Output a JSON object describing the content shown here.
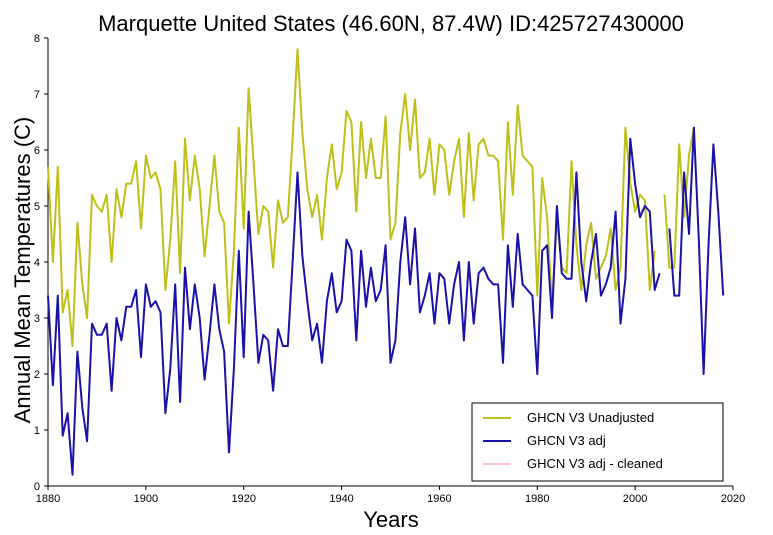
{
  "chart_data": {
    "type": "line",
    "title": "Marquette United States (46.60N, 87.4W) ID:425727430000",
    "xlabel": "Years",
    "ylabel": "Annual Mean Temperatures (C)",
    "xlim": [
      1880,
      2020
    ],
    "ylim": [
      0,
      8
    ],
    "xticks": [
      1880,
      1900,
      1920,
      1940,
      1960,
      1980,
      2000,
      2020
    ],
    "yticks": [
      0,
      1,
      2,
      3,
      4,
      5,
      6,
      7,
      8
    ],
    "grid": false,
    "legend_position": "bottom-right",
    "series": [
      {
        "name": "GHCN V3 Unadjusted",
        "color": "#bfbf1a",
        "x": [
          1880,
          1881,
          1882,
          1883,
          1884,
          1885,
          1886,
          1887,
          1888,
          1889,
          1890,
          1891,
          1892,
          1893,
          1894,
          1895,
          1896,
          1897,
          1898,
          1899,
          1900,
          1901,
          1902,
          1903,
          1904,
          1905,
          1906,
          1907,
          1908,
          1909,
          1910,
          1911,
          1912,
          1913,
          1914,
          1915,
          1916,
          1917,
          1918,
          1919,
          1920,
          1921,
          1922,
          1923,
          1924,
          1925,
          1926,
          1927,
          1928,
          1929,
          1930,
          1931,
          1932,
          1933,
          1934,
          1935,
          1936,
          1937,
          1938,
          1939,
          1940,
          1941,
          1942,
          1943,
          1944,
          1945,
          1946,
          1947,
          1948,
          1949,
          1950,
          1951,
          1952,
          1953,
          1954,
          1955,
          1956,
          1957,
          1958,
          1959,
          1960,
          1961,
          1962,
          1963,
          1964,
          1965,
          1966,
          1967,
          1968,
          1969,
          1970,
          1971,
          1972,
          1973,
          1974,
          1975,
          1976,
          1977,
          1978,
          1979,
          1980,
          1981,
          1982,
          1983,
          1984,
          1985,
          1986,
          1987,
          1988,
          1989,
          1990,
          1991,
          1992,
          1993,
          1994,
          1995,
          1996,
          1997,
          1998,
          1999,
          2000,
          2001,
          2002,
          2003,
          2004,
          2005,
          2006,
          2007,
          2008,
          2009,
          2010,
          2011,
          2012
        ],
        "y": [
          5.7,
          4.0,
          5.7,
          3.1,
          3.5,
          2.5,
          4.7,
          3.6,
          3.0,
          5.2,
          5.0,
          4.9,
          5.2,
          4.0,
          5.3,
          4.8,
          5.4,
          5.4,
          5.8,
          4.6,
          5.9,
          5.5,
          5.6,
          5.3,
          3.5,
          4.4,
          5.8,
          3.8,
          6.2,
          5.1,
          5.9,
          5.3,
          4.1,
          5.0,
          5.9,
          4.9,
          4.7,
          2.9,
          4.2,
          6.4,
          4.6,
          7.1,
          5.8,
          4.5,
          5.0,
          4.9,
          3.9,
          5.1,
          4.7,
          4.8,
          6.2,
          7.8,
          6.3,
          5.3,
          4.8,
          5.2,
          4.4,
          5.5,
          6.1,
          5.3,
          5.6,
          6.7,
          6.5,
          4.9,
          6.5,
          5.5,
          6.2,
          5.5,
          5.5,
          6.6,
          4.4,
          4.7,
          6.3,
          7.0,
          6.0,
          6.9,
          5.5,
          5.6,
          6.2,
          5.2,
          6.1,
          6.0,
          5.2,
          5.8,
          6.2,
          4.8,
          6.3,
          5.1,
          6.1,
          6.2,
          5.9,
          5.9,
          5.8,
          4.4,
          6.5,
          5.2,
          6.8,
          5.9,
          5.8,
          5.7,
          3.4,
          5.5,
          4.8,
          3.2,
          4.8,
          3.9,
          3.8,
          5.8,
          4.3,
          3.5,
          4.3,
          4.7,
          3.7,
          3.9,
          4.1,
          4.6,
          3.5,
          3.9,
          6.4,
          5.4,
          4.9,
          5.2,
          5.1,
          3.5,
          4.2,
          null,
          5.2,
          3.9,
          3.9,
          6.1,
          4.8,
          5.9,
          6.4
        ]
      },
      {
        "name": "GHCN V3 adj",
        "color": "#1a12a8",
        "x": [
          1880,
          1881,
          1882,
          1883,
          1884,
          1885,
          1886,
          1887,
          1888,
          1889,
          1890,
          1891,
          1892,
          1893,
          1894,
          1895,
          1896,
          1897,
          1898,
          1899,
          1900,
          1901,
          1902,
          1903,
          1904,
          1905,
          1906,
          1907,
          1908,
          1909,
          1910,
          1911,
          1912,
          1913,
          1914,
          1915,
          1916,
          1917,
          1918,
          1919,
          1920,
          1921,
          1922,
          1923,
          1924,
          1925,
          1926,
          1927,
          1928,
          1929,
          1930,
          1931,
          1932,
          1933,
          1934,
          1935,
          1936,
          1937,
          1938,
          1939,
          1940,
          1941,
          1942,
          1943,
          1944,
          1945,
          1946,
          1947,
          1948,
          1949,
          1950,
          1951,
          1952,
          1953,
          1954,
          1955,
          1956,
          1957,
          1958,
          1959,
          1960,
          1961,
          1962,
          1963,
          1964,
          1965,
          1966,
          1967,
          1968,
          1969,
          1970,
          1971,
          1972,
          1973,
          1974,
          1975,
          1976,
          1977,
          1978,
          1979,
          1980,
          1981,
          1982,
          1983,
          1984,
          1985,
          1986,
          1987,
          1988,
          1989,
          1990,
          1991,
          1992,
          1993,
          1994,
          1995,
          1996,
          1997,
          1998,
          1999,
          2000,
          2001,
          2002,
          2003,
          2004,
          2005,
          2006,
          2007,
          2008,
          2009,
          2010,
          2011,
          2012,
          2013,
          2014,
          2015,
          2016,
          2017,
          2018
        ],
        "y": [
          3.4,
          1.8,
          3.4,
          0.9,
          1.3,
          0.2,
          2.4,
          1.4,
          0.8,
          2.9,
          2.7,
          2.7,
          2.9,
          1.7,
          3.0,
          2.6,
          3.2,
          3.2,
          3.5,
          2.3,
          3.6,
          3.2,
          3.3,
          3.1,
          1.3,
          2.1,
          3.6,
          1.5,
          3.9,
          2.8,
          3.6,
          3.0,
          1.9,
          2.7,
          3.6,
          2.8,
          2.4,
          0.6,
          2.1,
          4.2,
          2.3,
          4.9,
          3.6,
          2.2,
          2.7,
          2.6,
          1.7,
          2.8,
          2.5,
          2.5,
          4.0,
          5.6,
          4.1,
          3.3,
          2.6,
          2.9,
          2.2,
          3.3,
          3.8,
          3.1,
          3.3,
          4.4,
          4.2,
          2.6,
          4.2,
          3.2,
          3.9,
          3.3,
          3.5,
          4.3,
          2.2,
          2.6,
          4.0,
          4.8,
          3.6,
          4.6,
          3.1,
          3.4,
          3.8,
          2.9,
          3.8,
          3.7,
          2.9,
          3.6,
          4.0,
          2.6,
          4.0,
          2.9,
          3.8,
          3.9,
          3.7,
          3.6,
          3.6,
          2.2,
          4.3,
          3.2,
          4.5,
          3.6,
          3.5,
          3.4,
          2.0,
          4.2,
          4.3,
          3.0,
          5.0,
          3.8,
          3.7,
          3.7,
          5.6,
          4.0,
          3.3,
          4.0,
          4.5,
          3.4,
          3.6,
          3.9,
          4.9,
          2.9,
          3.7,
          6.2,
          5.4,
          4.8,
          5.0,
          4.9,
          3.5,
          3.8,
          null,
          4.6,
          3.4,
          3.4,
          5.6,
          4.5,
          6.4,
          4.4,
          2.0,
          4.3,
          6.1,
          4.9,
          3.4
        ]
      },
      {
        "name": "GHCN V3 adj - cleaned",
        "color": "#f7c6cc",
        "x": [],
        "y": []
      }
    ]
  }
}
